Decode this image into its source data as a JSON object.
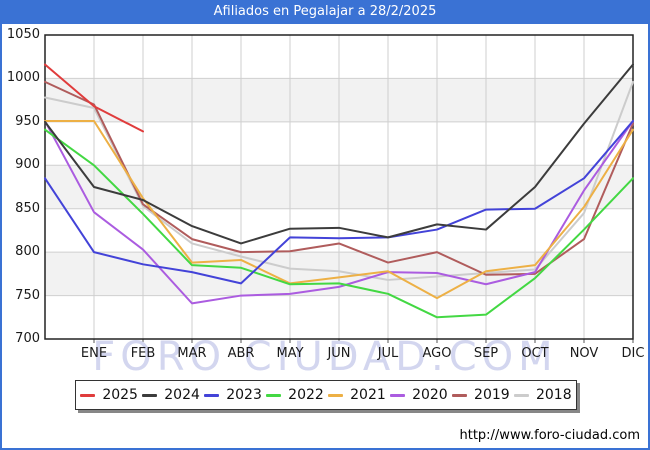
{
  "window": {
    "title": "Afiliados en Pegalajar a 28/2/2025",
    "watermark": "FORO CIUDAD.COM",
    "url": "http://www.foro-ciudad.com"
  },
  "colors": {
    "frame_and_titlebar": "#3a72d4",
    "plot_border": "#222222",
    "gridline": "#cfcfcf",
    "band_alternate": "#f2f2f2",
    "watermark_text": "#d3d6ef"
  },
  "chart_data": {
    "type": "line",
    "title": "Afiliados en Pegalajar a 28/2/2025",
    "xlabel": "",
    "ylabel": "",
    "ylim": [
      700,
      1050
    ],
    "y_ticks": [
      1050,
      1000,
      950,
      900,
      850,
      800,
      750,
      700
    ],
    "x_tick_labels": [
      "ENE",
      "FEB",
      "MAR",
      "ABR",
      "MAY",
      "JUN",
      "JUL",
      "AGO",
      "SEP",
      "OCT",
      "NOV",
      "DIC"
    ],
    "x_note": "first point of each series sits on the y-axis (previous December), then one point per month",
    "grid": true,
    "legend_position": "bottom",
    "series": [
      {
        "name": "2025",
        "color": "#e03c3c",
        "values": [
          1016,
          968,
          939
        ]
      },
      {
        "name": "2024",
        "color": "#3c3c3c",
        "values": [
          950,
          875,
          860,
          830,
          810,
          827,
          828,
          817,
          832,
          826,
          875,
          948,
          1016
        ]
      },
      {
        "name": "2023",
        "color": "#4343d8",
        "values": [
          885,
          800,
          786,
          777,
          764,
          817,
          816,
          817,
          826,
          849,
          850,
          885,
          951
        ]
      },
      {
        "name": "2022",
        "color": "#43d843",
        "values": [
          941,
          900,
          844,
          785,
          782,
          763,
          764,
          752,
          725,
          728,
          770,
          826,
          885
        ]
      },
      {
        "name": "2021",
        "color": "#edb045",
        "values": [
          951,
          951,
          862,
          788,
          791,
          764,
          771,
          778,
          747,
          778,
          785,
          852,
          941
        ]
      },
      {
        "name": "2020",
        "color": "#ab5ce0",
        "values": [
          951,
          846,
          803,
          741,
          750,
          752,
          760,
          777,
          776,
          763,
          777,
          871,
          951
        ]
      },
      {
        "name": "2019",
        "color": "#b05c5c",
        "values": [
          996,
          970,
          855,
          815,
          800,
          801,
          810,
          788,
          800,
          774,
          775,
          815,
          948
        ]
      },
      {
        "name": "2018",
        "color": "#cccccc",
        "values": [
          978,
          966,
          853,
          810,
          795,
          781,
          778,
          768,
          772,
          776,
          780,
          845,
          996
        ]
      }
    ]
  }
}
